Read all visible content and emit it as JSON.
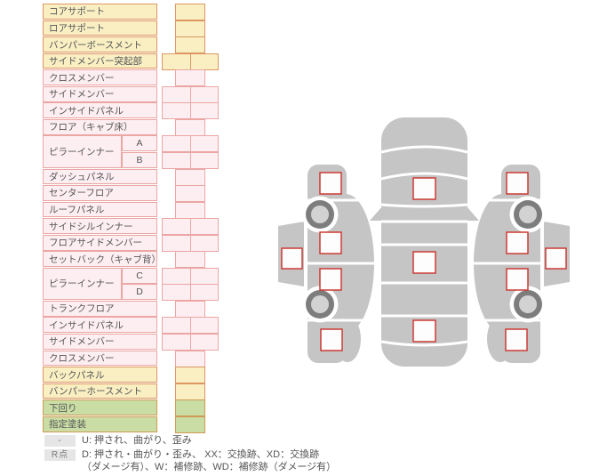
{
  "colors": {
    "yellow_fill": "#f9efc3",
    "yellow_border": "#dd9662",
    "pink_fill": "#fdeef2",
    "pink_border": "#eba6a4",
    "green_fill": "#c9dda5",
    "green_border": "#cf9a55",
    "diagram_gray": "#c5c5c5",
    "wheel_ring": "#7d7d7d",
    "wheel_hub": "#d2d2d2",
    "checkbox_border": "#cc3b35",
    "text": "#555555",
    "badge_bg": "#e6e6e6",
    "badge_text": "#7a7a7a"
  },
  "parts_table": {
    "rows": [
      {
        "label": "コアサポート",
        "group": "yellow",
        "cells": 1
      },
      {
        "label": "ロアサポート",
        "group": "yellow",
        "cells": 1
      },
      {
        "label": "バンパーボースメント",
        "group": "yellow",
        "cells": 1
      },
      {
        "label": "サイドメンバー突起部",
        "group": "yellow",
        "cells": 2
      },
      {
        "label": "クロスメンバー",
        "group": "pink",
        "cells": 1
      },
      {
        "label": "サイドメンバー",
        "group": "pink",
        "cells": 2
      },
      {
        "label": "インサイドパネル",
        "group": "pink",
        "cells": 2
      },
      {
        "label": "フロア（キャブ床）",
        "group": "pink",
        "cells": 1
      },
      {
        "label": "ピラーインナー",
        "group": "pink",
        "cells": 2,
        "subs": [
          "A",
          "B"
        ]
      },
      {
        "label": "ダッシュパネル",
        "group": "pink",
        "cells": 1
      },
      {
        "label": "センターフロア",
        "group": "pink",
        "cells": 1
      },
      {
        "label": "ルーフパネル",
        "group": "pink",
        "cells": 1
      },
      {
        "label": "サイドシルインナー",
        "group": "pink",
        "cells": 2
      },
      {
        "label": "フロアサイドメンバー",
        "group": "pink",
        "cells": 2
      },
      {
        "label": "セットバック（キャブ背）",
        "group": "pink",
        "cells": 1
      },
      {
        "label": "ピラーインナー",
        "group": "pink",
        "cells": 2,
        "subs": [
          "C",
          "D"
        ]
      },
      {
        "label": "トランクフロア",
        "group": "pink",
        "cells": 1
      },
      {
        "label": "インサイドパネル",
        "group": "pink",
        "cells": 2
      },
      {
        "label": "サイドメンバー",
        "group": "pink",
        "cells": 2
      },
      {
        "label": "クロスメンバー",
        "group": "pink",
        "cells": 1
      },
      {
        "label": "バックパネル",
        "group": "yellow",
        "cells": 1
      },
      {
        "label": "バンパーホースメント",
        "group": "yellow",
        "cells": 1
      },
      {
        "label": "下回り",
        "group": "green",
        "cells": 1
      },
      {
        "label": "指定塗装",
        "group": "green",
        "cells": 1
      }
    ]
  },
  "legend": {
    "items": [
      {
        "badge": "-",
        "lines": [
          "U: 押され、曲がり、歪み"
        ]
      },
      {
        "badge": "R点",
        "lines": [
          "D: 押され・曲がり・歪み、 XX：交換跡、XD：交換跡",
          "（ダメージ有）、W：補修跡、WD：補修跡（ダメージ有）"
        ]
      }
    ]
  },
  "diagram": {
    "left_side_checkpoints": 5,
    "top_view_checkpoints": 3,
    "right_side_checkpoints": 5
  }
}
